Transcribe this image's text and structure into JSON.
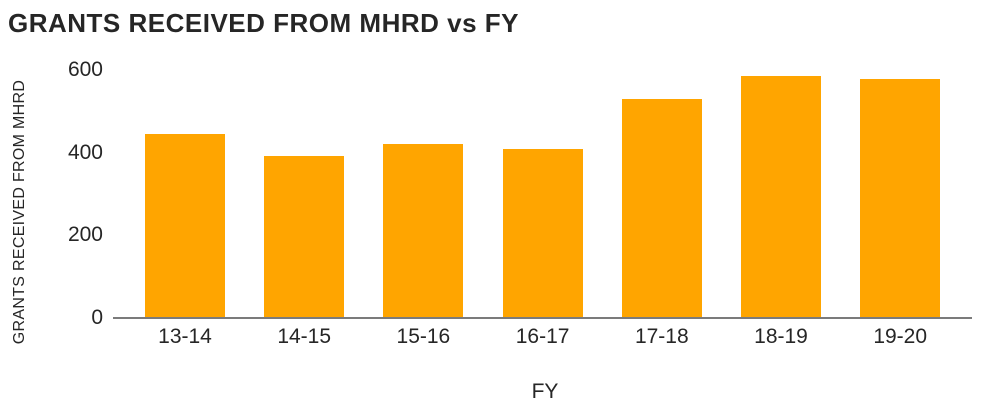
{
  "chart_data": {
    "type": "bar",
    "title": "GRANTS RECEIVED FROM MHRD vs FY",
    "xlabel": "FY",
    "ylabel": "GRANTS RECEIVED FROM MHRD",
    "categories": [
      "13-14",
      "14-15",
      "15-16",
      "16-17",
      "17-18",
      "18-19",
      "19-20"
    ],
    "values": [
      445,
      393,
      422,
      408,
      529,
      585,
      578
    ],
    "ylim": [
      0,
      600
    ],
    "yticks": [
      0,
      200,
      400,
      600
    ],
    "grid": false,
    "legend": "none",
    "bar_color": "#FFA500",
    "axis_line_color": "#7b7b7b",
    "text_color": "#262626"
  }
}
